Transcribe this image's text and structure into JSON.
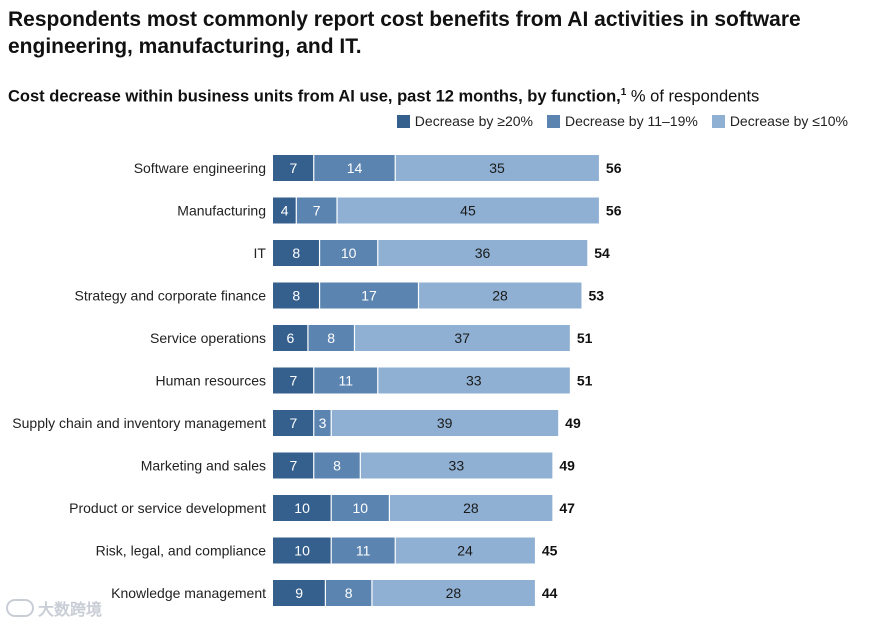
{
  "headline": "Respondents most commonly report cost benefits from AI activities in software engineering, manufacturing, and IT.",
  "subtitle": {
    "main": "Cost decrease within business units from AI use, past 12 months, by function,",
    "footnote_mark": "1",
    "unit": " % of respondents"
  },
  "watermark_text": "大数跨境",
  "colors": {
    "dark": "#355f8d",
    "mid": "#5b84b1",
    "light": "#8fb0d3",
    "text": "#111111"
  },
  "chart_data": {
    "type": "bar",
    "orientation": "horizontal",
    "stacked": true,
    "title": "Cost decrease within business units from AI use, past 12 months, by function",
    "xlabel": "",
    "ylabel": "",
    "unit": "% of respondents",
    "legend_position": "top-right",
    "grid": false,
    "categories": [
      "Software engineering",
      "Manufacturing",
      "IT",
      "Strategy and corporate finance",
      "Service operations",
      "Human resources",
      "Supply chain and inventory management",
      "Marketing and sales",
      "Product or service development",
      "Risk, legal, and compliance",
      "Knowledge management"
    ],
    "series": [
      {
        "name": "Decrease by ≥20%",
        "color": "#355f8d",
        "values": [
          7,
          4,
          8,
          8,
          6,
          7,
          7,
          7,
          10,
          10,
          9
        ]
      },
      {
        "name": "Decrease by 11–19%",
        "color": "#5b84b1",
        "values": [
          14,
          7,
          10,
          17,
          8,
          11,
          3,
          8,
          10,
          11,
          8
        ]
      },
      {
        "name": "Decrease by ≤10%",
        "color": "#8fb0d3",
        "values": [
          35,
          45,
          36,
          28,
          37,
          33,
          39,
          33,
          28,
          24,
          28
        ]
      }
    ],
    "totals": [
      56,
      56,
      54,
      53,
      51,
      51,
      49,
      49,
      47,
      45,
      44
    ]
  }
}
